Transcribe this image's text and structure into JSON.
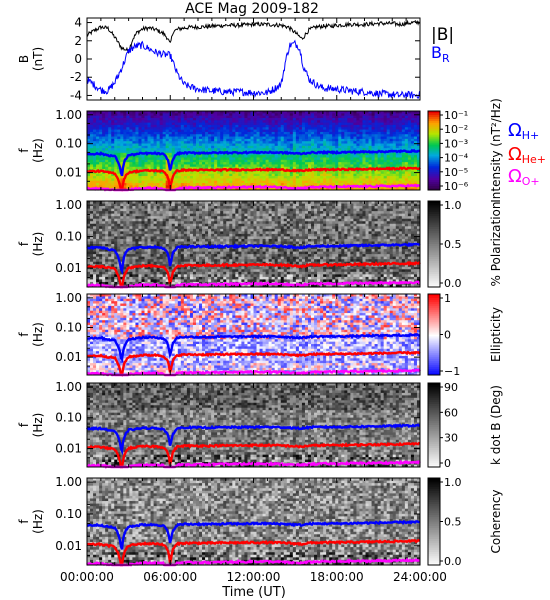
{
  "chart_data": {
    "title": "ACE Mag 2009-182",
    "xlabel": "Time (UT)",
    "x_ticks": [
      "00:00:00",
      "06:00:00",
      "12:00:00",
      "18:00:00",
      "24:00:00"
    ],
    "xlim_hours": [
      0,
      24
    ],
    "panels": [
      {
        "type": "line",
        "ylabel_main": "B",
        "ylabel_unit": "(nT)",
        "ylim": [
          -4.5,
          4.5
        ],
        "y_ticks": [
          "4",
          "2",
          "0",
          "-2",
          "-4"
        ],
        "series": [
          {
            "name": "|B|",
            "color": "#000000",
            "x": [
              0,
              0.5,
              1,
              1.5,
              2,
              2.5,
              3,
              3.3,
              3.6,
              4,
              4.5,
              5,
              5.5,
              5.8,
              6,
              6.2,
              6.6,
              7,
              7.5,
              8,
              9,
              10,
              11,
              12,
              13,
              14,
              14.5,
              15,
              15.5,
              16,
              16.5,
              17,
              17.5,
              18,
              19,
              20,
              21,
              22,
              22.5,
              23,
              23.5,
              24
            ],
            "values": [
              2.6,
              3.1,
              3.5,
              3.4,
              2.4,
              1.2,
              0.9,
              2.2,
              2.9,
              3.3,
              3.4,
              3.2,
              2.8,
              2.3,
              1.6,
              3.0,
              3.3,
              3.4,
              3.5,
              3.5,
              3.6,
              3.7,
              3.7,
              3.8,
              3.8,
              3.7,
              3.5,
              2.9,
              2.2,
              3.2,
              3.5,
              3.6,
              3.6,
              3.7,
              3.8,
              3.8,
              3.9,
              3.9,
              3.8,
              3.9,
              4.0,
              4.0
            ]
          },
          {
            "name": "B_R",
            "color": "#0000ff",
            "x": [
              0,
              0.5,
              1,
              1.5,
              2,
              2.5,
              3,
              3.5,
              4,
              4.5,
              5,
              5.5,
              6,
              6.5,
              7,
              7.5,
              8,
              9,
              10,
              11,
              12,
              13,
              14,
              14.3,
              14.6,
              15,
              15.3,
              15.6,
              16,
              16.5,
              17,
              18,
              19,
              20,
              21,
              22,
              22.5,
              23,
              23.5,
              24
            ],
            "values": [
              -2.3,
              -2.8,
              -3.4,
              -3.5,
              -2.6,
              -1.0,
              0.9,
              1.4,
              1.5,
              1.1,
              0.7,
              0.5,
              0.4,
              -1.6,
              -2.8,
              -3.1,
              -3.3,
              -3.5,
              -3.6,
              -3.6,
              -3.7,
              -3.7,
              -2.8,
              -0.3,
              1.5,
              1.7,
              1.3,
              -0.8,
              -2.2,
              -2.8,
              -3.2,
              -3.3,
              -3.5,
              -3.6,
              -3.8,
              -3.9,
              -4.0,
              -3.9,
              -4.0,
              -3.9
            ]
          }
        ]
      },
      {
        "type": "heatmap",
        "ylabel_main": "f",
        "ylabel_unit": "(Hz)",
        "y_ticks": [
          "1.00",
          "0.10",
          "0.01"
        ],
        "colorbar": {
          "label": "Intensity (nT²/Hz)",
          "scale": "rainbow",
          "ticks": [
            "10⁻¹",
            "10⁻²",
            "10⁻³",
            "10⁻⁴",
            "10⁻⁵",
            "10⁻⁶"
          ]
        }
      },
      {
        "type": "heatmap",
        "ylabel_main": "f",
        "ylabel_unit": "(Hz)",
        "y_ticks": [
          "1.00",
          "0.10",
          "0.01"
        ],
        "colorbar": {
          "label": "% Polarization",
          "scale": "gray",
          "ticks": [
            "1.0",
            "0.5",
            "0.0"
          ]
        }
      },
      {
        "type": "heatmap",
        "ylabel_main": "f",
        "ylabel_unit": "(Hz)",
        "y_ticks": [
          "1.00",
          "0.10",
          "0.01"
        ],
        "colorbar": {
          "label": "Ellipticity",
          "scale": "bwr",
          "ticks": [
            "1",
            "0",
            "−1"
          ]
        }
      },
      {
        "type": "heatmap",
        "ylabel_main": "f",
        "ylabel_unit": "(Hz)",
        "y_ticks": [
          "1.00",
          "0.10",
          "0.01"
        ],
        "colorbar": {
          "label": "k dot B (Deg)",
          "scale": "gray",
          "ticks": [
            "90",
            "60",
            "30",
            "0"
          ]
        }
      },
      {
        "type": "heatmap",
        "ylabel_main": "f",
        "ylabel_unit": "(Hz)",
        "y_ticks": [
          "1.00",
          "0.10",
          "0.01"
        ],
        "colorbar": {
          "label": "Coherency",
          "scale": "gray",
          "ticks": [
            "1.0",
            "0.5",
            "0.0"
          ]
        }
      }
    ],
    "legend_top": [
      {
        "text": "|B|",
        "color": "#000000"
      },
      {
        "text": "B_R",
        "color": "#0000ff"
      }
    ],
    "legend_gyro": [
      {
        "symbol": "Ω",
        "sub": "H+",
        "color": "#0000ff",
        "freq_hz": 0.05
      },
      {
        "symbol": "Ω",
        "sub": "He+",
        "color": "#ff0000",
        "freq_hz": 0.013
      },
      {
        "symbol": "Ω",
        "sub": "O+",
        "color": "#ff00ff",
        "freq_hz": 0.0032
      }
    ],
    "gyro_lines": {
      "x": [
        0,
        1,
        1.5,
        2,
        2.3,
        2.5,
        2.7,
        3,
        4,
        5,
        5.5,
        5.8,
        6,
        6.2,
        6.5,
        7,
        8,
        9,
        10,
        11,
        12,
        13,
        14,
        14.5,
        15,
        15.5,
        16,
        17,
        18,
        19,
        20,
        21,
        22,
        23,
        24
      ],
      "H+": [
        0.044,
        0.045,
        0.04,
        0.037,
        0.02,
        0.006,
        0.025,
        0.04,
        0.046,
        0.046,
        0.043,
        0.03,
        0.01,
        0.03,
        0.045,
        0.048,
        0.048,
        0.048,
        0.049,
        0.049,
        0.05,
        0.05,
        0.049,
        0.048,
        0.046,
        0.045,
        0.049,
        0.05,
        0.05,
        0.051,
        0.052,
        0.053,
        0.054,
        0.055,
        0.056
      ],
      "He+": [
        0.011,
        0.0112,
        0.0102,
        0.0095,
        0.005,
        0.0016,
        0.0065,
        0.0102,
        0.0117,
        0.0117,
        0.011,
        0.0077,
        0.0026,
        0.0077,
        0.0115,
        0.0122,
        0.0122,
        0.0122,
        0.0125,
        0.0125,
        0.0127,
        0.0127,
        0.0125,
        0.0122,
        0.0117,
        0.0114,
        0.0124,
        0.0127,
        0.0128,
        0.013,
        0.0132,
        0.0135,
        0.0137,
        0.014,
        0.0142
      ],
      "O+": [
        0.0028,
        0.0028,
        0.0026,
        0.0024,
        0.0013,
        0.0006,
        0.0017,
        0.0026,
        0.0029,
        0.0029,
        0.0028,
        0.002,
        0.0007,
        0.002,
        0.0029,
        0.003,
        0.003,
        0.003,
        0.0031,
        0.0031,
        0.0032,
        0.0032,
        0.0031,
        0.003,
        0.0029,
        0.0029,
        0.0031,
        0.0032,
        0.0032,
        0.0033,
        0.0033,
        0.0034,
        0.0034,
        0.0035,
        0.0035
      ]
    }
  }
}
